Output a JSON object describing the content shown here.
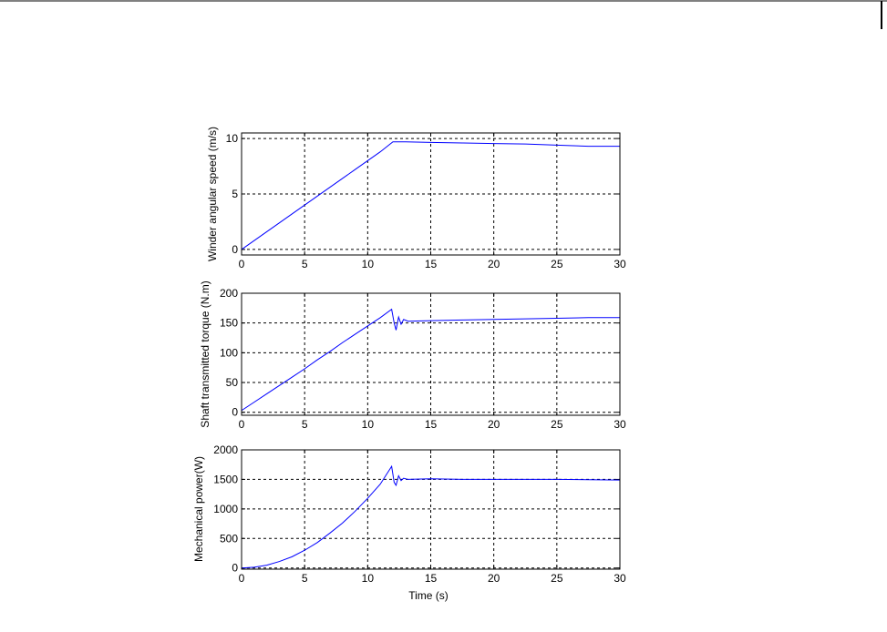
{
  "chart_data": [
    {
      "type": "line",
      "xlabel": "",
      "ylabel": "Winder angular speed (m/s)",
      "xlim": [
        0,
        30
      ],
      "ylim": [
        -0.5,
        10.5
      ],
      "xticks": [
        "0",
        "5",
        "10",
        "15",
        "20",
        "25",
        "30"
      ],
      "yticks": [
        "0",
        "5",
        "10"
      ],
      "ytick_values": [
        0,
        5,
        10
      ],
      "grid": true,
      "series": [
        {
          "color": "#0000ff",
          "x": [
            0,
            1,
            2,
            3,
            4,
            5,
            6,
            7,
            8,
            9,
            10,
            11,
            12,
            13,
            15,
            17.5,
            20,
            22.5,
            25,
            27.5,
            30
          ],
          "y": [
            0,
            0.8,
            1.6,
            2.4,
            3.2,
            4.0,
            4.8,
            5.6,
            6.4,
            7.2,
            8.0,
            8.8,
            9.7,
            9.7,
            9.65,
            9.6,
            9.55,
            9.5,
            9.4,
            9.3,
            9.3
          ]
        }
      ]
    },
    {
      "type": "line",
      "xlabel": "",
      "ylabel": "Shaft transmitted torque (N.m)",
      "xlim": [
        0,
        30
      ],
      "ylim": [
        -5,
        200
      ],
      "xticks": [
        "0",
        "5",
        "10",
        "15",
        "20",
        "25",
        "30"
      ],
      "yticks": [
        "0",
        "50",
        "100",
        "150",
        "200"
      ],
      "ytick_values": [
        0,
        50,
        100,
        150,
        200
      ],
      "grid": true,
      "series": [
        {
          "color": "#0000ff",
          "x": [
            0,
            1,
            2,
            3,
            4,
            5,
            6,
            7,
            8,
            9,
            10,
            11,
            11.9,
            12.1,
            12.25,
            12.45,
            12.65,
            12.85,
            13.2,
            15,
            17.5,
            20,
            22.5,
            25,
            27.5,
            30
          ],
          "y": [
            3,
            17,
            31,
            45,
            59,
            73,
            88,
            102,
            117,
            131,
            145,
            159,
            173,
            150,
            138,
            160,
            148,
            156,
            153,
            154,
            155,
            156,
            157,
            158,
            159,
            159
          ]
        }
      ]
    },
    {
      "type": "line",
      "xlabel": "Time (s)",
      "ylabel": "Mechanical power(W)",
      "xlim": [
        0,
        30
      ],
      "ylim": [
        -20,
        2000
      ],
      "xticks": [
        "0",
        "5",
        "10",
        "15",
        "20",
        "25",
        "30"
      ],
      "yticks": [
        "0",
        "500",
        "1000",
        "1500",
        "2000"
      ],
      "ytick_values": [
        0,
        500,
        1000,
        1500,
        2000
      ],
      "grid": true,
      "series": [
        {
          "color": "#0000ff",
          "x": [
            0,
            1,
            2,
            3,
            4,
            5,
            6,
            7,
            8,
            9,
            10,
            11,
            11.9,
            12.1,
            12.25,
            12.45,
            12.65,
            12.85,
            13.2,
            15,
            17.5,
            20,
            25,
            30
          ],
          "y": [
            0,
            12,
            48,
            110,
            190,
            300,
            430,
            590,
            760,
            960,
            1180,
            1420,
            1720,
            1450,
            1400,
            1560,
            1480,
            1520,
            1500,
            1510,
            1500,
            1500,
            1500,
            1490
          ]
        }
      ]
    }
  ]
}
